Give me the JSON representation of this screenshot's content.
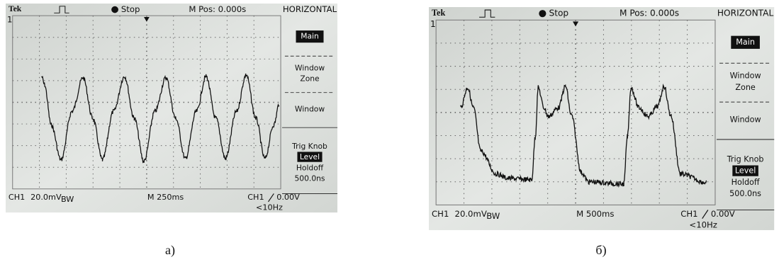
{
  "panels": [
    {
      "header": {
        "brand": "Tek",
        "status": "Stop",
        "position": "M Pos: 0.000s",
        "menu_title": "HORIZONTAL"
      },
      "menu": {
        "main": "Main",
        "window_zone": [
          "Window",
          "Zone"
        ],
        "window": "Window",
        "trig_knob": "Trig Knob",
        "level": "Level",
        "holdoff": "Holdoff",
        "holdoff_value": "500.0ns"
      },
      "footer": {
        "channel": "CH1",
        "scale": "20.0mV",
        "bandwidth": "BW",
        "timebase": "M 250ms",
        "trigger_channel": "CH1",
        "trigger_level": "0.00V",
        "trigger_freq": "<10Hz"
      },
      "marker": "1",
      "caption": "а)"
    },
    {
      "header": {
        "brand": "Tek",
        "status": "Stop",
        "position": "M Pos: 0.000s",
        "menu_title": "HORIZONTAL"
      },
      "menu": {
        "main": "Main",
        "window_zone": [
          "Window",
          "Zone"
        ],
        "window": "Window",
        "trig_knob": "Trig Knob",
        "level": "Level",
        "holdoff": "Holdoff",
        "holdoff_value": "500.0ns"
      },
      "footer": {
        "channel": "CH1",
        "scale": "20.0mV",
        "bandwidth": "BW",
        "timebase": "M 500ms",
        "trigger_channel": "CH1",
        "trigger_level": "0.00V",
        "trigger_freq": "<10Hz"
      },
      "marker": "1",
      "caption": "б)"
    }
  ]
}
